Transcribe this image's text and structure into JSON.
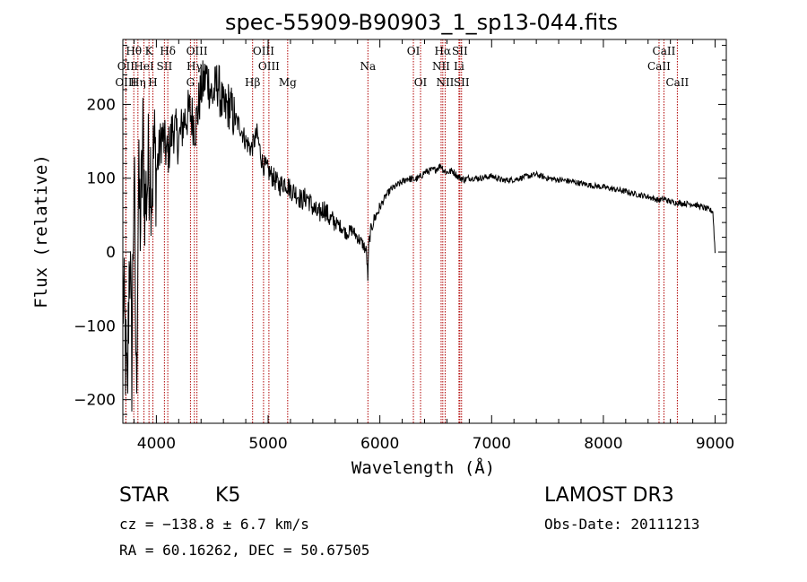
{
  "chart_data": {
    "type": "line",
    "title": "spec-55909-B90903_1_sp13-044.fits",
    "xlabel": "Wavelength (Å)",
    "ylabel": "Flux (relative)",
    "xlim": [
      3700,
      9100
    ],
    "ylim": [
      -232,
      288
    ],
    "xticks": [
      4000,
      5000,
      6000,
      7000,
      8000,
      9000
    ],
    "xtick_labels": [
      "4000",
      "5000",
      "6000",
      "7000",
      "8000",
      "9000"
    ],
    "yticks": [
      -200,
      -100,
      0,
      100,
      200
    ],
    "ytick_labels": [
      "−200",
      "−100",
      "0",
      "100",
      "200"
    ],
    "grid": false,
    "series": [
      {
        "name": "flux",
        "x": [
          3700,
          3720,
          3740,
          3760,
          3780,
          3800,
          3820,
          3840,
          3860,
          3880,
          3900,
          3920,
          3940,
          3960,
          3980,
          4000,
          4050,
          4100,
          4150,
          4200,
          4250,
          4300,
          4350,
          4400,
          4450,
          4500,
          4550,
          4600,
          4650,
          4700,
          4750,
          4800,
          4850,
          4900,
          4950,
          5000,
          5050,
          5100,
          5150,
          5200,
          5250,
          5300,
          5350,
          5400,
          5450,
          5500,
          5550,
          5600,
          5650,
          5700,
          5750,
          5800,
          5850,
          5880,
          5893,
          5900,
          5920,
          5950,
          6000,
          6050,
          6100,
          6150,
          6200,
          6250,
          6300,
          6350,
          6400,
          6450,
          6500,
          6550,
          6563,
          6600,
          6650,
          6700,
          6750,
          6800,
          6900,
          7000,
          7100,
          7200,
          7300,
          7400,
          7500,
          7600,
          7700,
          7800,
          7900,
          8000,
          8100,
          8200,
          8300,
          8400,
          8500,
          8542,
          8600,
          8700,
          8800,
          8900,
          8980,
          9000
        ],
        "y": [
          -50,
          -120,
          -210,
          20,
          -150,
          120,
          -190,
          80,
          40,
          150,
          60,
          100,
          130,
          90,
          140,
          110,
          160,
          130,
          170,
          150,
          180,
          190,
          170,
          220,
          240,
          210,
          230,
          190,
          200,
          180,
          170,
          150,
          140,
          160,
          120,
          110,
          100,
          90,
          95,
          85,
          80,
          70,
          75,
          60,
          50,
          60,
          45,
          40,
          35,
          25,
          30,
          20,
          10,
          0,
          -38,
          10,
          30,
          45,
          60,
          75,
          85,
          90,
          95,
          100,
          98,
          100,
          108,
          110,
          112,
          118,
          112,
          108,
          110,
          102,
          98,
          100,
          100,
          103,
          97,
          98,
          102,
          105,
          100,
          98,
          96,
          93,
          90,
          88,
          85,
          82,
          78,
          75,
          70,
          72,
          68,
          66,
          65,
          60,
          55,
          0
        ]
      }
    ],
    "line_markers": [
      {
        "label": "Hθ",
        "x": 3798,
        "row": 1
      },
      {
        "label": "OII",
        "x": 3727,
        "row": 2
      },
      {
        "label": "OIII",
        "x": 3727,
        "row": 3
      },
      {
        "label": "K",
        "x": 3934,
        "row": 1
      },
      {
        "label": "HeI",
        "x": 3889,
        "row": 2
      },
      {
        "label": "Hη",
        "x": 3835,
        "row": 3
      },
      {
        "label": "SII",
        "x": 4072,
        "row": 2
      },
      {
        "label": "H",
        "x": 3969,
        "row": 3
      },
      {
        "label": "Hδ",
        "x": 4102,
        "row": 1
      },
      {
        "label": "OIII",
        "x": 4363,
        "row": 1
      },
      {
        "label": "Hγ",
        "x": 4340,
        "row": 2
      },
      {
        "label": "G",
        "x": 4305,
        "row": 3
      },
      {
        "label": "OIII",
        "x": 4959,
        "row": 1
      },
      {
        "label": "OIII",
        "x": 5007,
        "row": 2
      },
      {
        "label": "Hβ",
        "x": 4861,
        "row": 3
      },
      {
        "label": "Mg",
        "x": 5175,
        "row": 3
      },
      {
        "label": "Na",
        "x": 5893,
        "row": 2
      },
      {
        "label": "OI",
        "x": 6300,
        "row": 1
      },
      {
        "label": "OI",
        "x": 6364,
        "row": 3
      },
      {
        "label": "Hα",
        "x": 6563,
        "row": 1
      },
      {
        "label": "NII",
        "x": 6548,
        "row": 2
      },
      {
        "label": "NII",
        "x": 6584,
        "row": 3
      },
      {
        "label": "SII",
        "x": 6716,
        "row": 1
      },
      {
        "label": "Li",
        "x": 6708,
        "row": 2
      },
      {
        "label": "SII",
        "x": 6731,
        "row": 3
      },
      {
        "label": "CaII",
        "x": 8542,
        "row": 1
      },
      {
        "label": "CaII",
        "x": 8498,
        "row": 2
      },
      {
        "label": "CaII",
        "x": 8662,
        "row": 3
      }
    ]
  },
  "info": {
    "object_class": "STAR",
    "subclass": "K5",
    "survey": "LAMOST DR3",
    "redshift": "cz = −138.8 ± 6.7 km/s",
    "obs_date": "Obs-Date: 20111213",
    "coords": "RA =  60.16262, DEC =  50.67505"
  },
  "colors": {
    "spectrum": "#000000",
    "marker": "#b00000",
    "axes": "#000000"
  }
}
